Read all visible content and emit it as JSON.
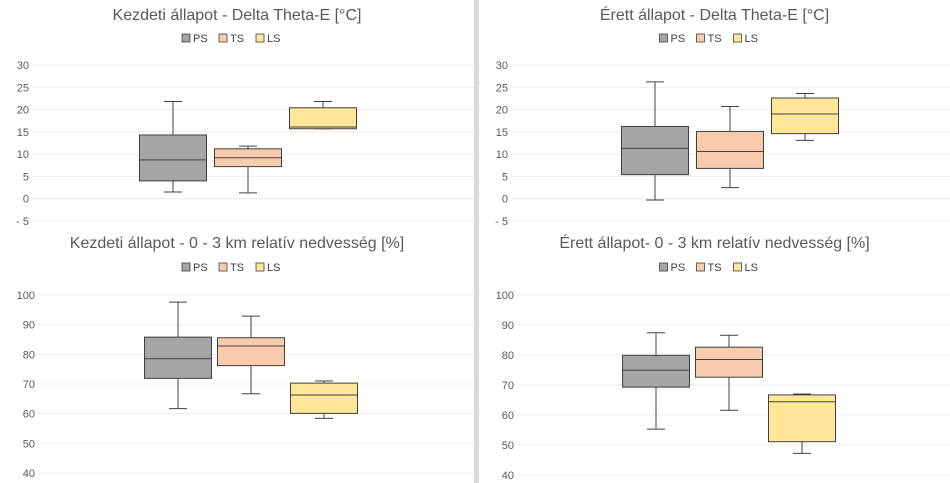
{
  "chart_data": [
    {
      "type": "box",
      "title": "Kezdeti állapot - Delta Theta-E [°C]",
      "categories": [
        "PS",
        "TS",
        "LS"
      ],
      "ylim": [
        -5,
        30
      ],
      "yticks": [
        -5,
        0,
        5,
        10,
        15,
        20,
        25,
        30
      ],
      "ytick_labels": [
        "- 5",
        "0",
        "5",
        "10",
        "15",
        "20",
        "25",
        "30"
      ],
      "grid": true,
      "legend_position": "top",
      "series": [
        {
          "name": "PS",
          "color": "#a5a5a5",
          "min": 1.5,
          "q1": 4,
          "median": 8.7,
          "q3": 14.3,
          "max": 21.8
        },
        {
          "name": "TS",
          "color": "#f8cbad",
          "min": 1.3,
          "q1": 7.2,
          "median": 9.2,
          "q3": 11.2,
          "max": 11.8
        },
        {
          "name": "LS",
          "color": "#ffe699",
          "min": 15.7,
          "q1": 15.7,
          "median": 16.1,
          "q3": 20.4,
          "max": 21.8
        }
      ]
    },
    {
      "type": "box",
      "title": "Érett állapot - Delta Theta-E [°C]",
      "categories": [
        "PS",
        "TS",
        "LS"
      ],
      "ylim": [
        -5,
        30
      ],
      "yticks": [
        -5,
        0,
        5,
        10,
        15,
        20,
        25,
        30
      ],
      "ytick_labels": [
        "- 5",
        "0",
        "5",
        "10",
        "15",
        "20",
        "25",
        "30"
      ],
      "grid": true,
      "legend_position": "top",
      "series": [
        {
          "name": "PS",
          "color": "#a5a5a5",
          "min": -0.3,
          "q1": 5.4,
          "median": 11.3,
          "q3": 16.2,
          "max": 26.2
        },
        {
          "name": "TS",
          "color": "#f8cbad",
          "min": 2.5,
          "q1": 6.8,
          "median": 10.6,
          "q3": 15.1,
          "max": 20.7
        },
        {
          "name": "LS",
          "color": "#ffe699",
          "min": 13.1,
          "q1": 14.6,
          "median": 19.0,
          "q3": 22.6,
          "max": 23.6
        }
      ]
    },
    {
      "type": "box",
      "title": "Kezdeti állapot - 0 - 3 km relatív nedvesség [%]",
      "categories": [
        "PS",
        "TS",
        "LS"
      ],
      "ylim": [
        40,
        100
      ],
      "yticks": [
        40,
        50,
        60,
        70,
        80,
        90,
        100
      ],
      "ytick_labels": [
        "40",
        "50",
        "60",
        "70",
        "80",
        "90",
        "100"
      ],
      "grid": true,
      "legend_position": "top",
      "series": [
        {
          "name": "PS",
          "color": "#a5a5a5",
          "min": 61.7,
          "q1": 71.9,
          "median": 78.5,
          "q3": 85.8,
          "max": 97.6
        },
        {
          "name": "TS",
          "color": "#f8cbad",
          "min": 66.7,
          "q1": 76.2,
          "median": 82.8,
          "q3": 85.6,
          "max": 92.9
        },
        {
          "name": "LS",
          "color": "#ffe699",
          "min": 58.4,
          "q1": 60.1,
          "median": 66.3,
          "q3": 70.3,
          "max": 71.0
        }
      ]
    },
    {
      "type": "box",
      "title": "Érett állapot- 0 - 3 km relatív nedvesség [%]",
      "categories": [
        "PS",
        "TS",
        "LS"
      ],
      "ylim": [
        40,
        100
      ],
      "yticks": [
        40,
        50,
        60,
        70,
        80,
        90,
        100
      ],
      "ytick_labels": [
        "40",
        "50",
        "60",
        "70",
        "80",
        "90",
        "100"
      ],
      "grid": true,
      "legend_position": "top",
      "series": [
        {
          "name": "PS",
          "color": "#a5a5a5",
          "min": 55.3,
          "q1": 69.3,
          "median": 74.9,
          "q3": 79.9,
          "max": 87.4
        },
        {
          "name": "TS",
          "color": "#f8cbad",
          "min": 61.6,
          "q1": 72.6,
          "median": 78.5,
          "q3": 82.6,
          "max": 86.6
        },
        {
          "name": "LS",
          "color": "#ffe699",
          "min": 47.2,
          "q1": 51.1,
          "median": 64.4,
          "q3": 66.7,
          "max": 67.0
        }
      ]
    }
  ]
}
